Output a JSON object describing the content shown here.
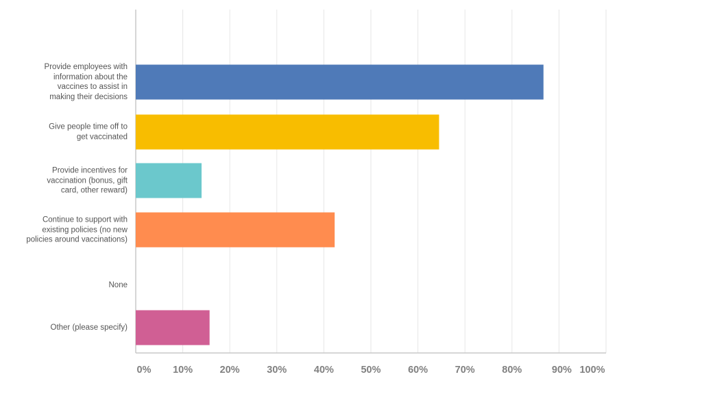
{
  "chart_data": {
    "type": "bar",
    "orientation": "horizontal",
    "categories": [
      "Provide employees with information about the vaccines to assist in making their decisions",
      "Give people time off to get vaccinated",
      "Provide incentives for vaccination (bonus, gift card, other reward)",
      "Continue to support with existing policies (no new policies around vaccinations)",
      "None",
      "Other (please specify)"
    ],
    "category_lines": [
      [
        "Provide employees with",
        "information about the",
        "vaccines to assist in",
        "making their decisions"
      ],
      [
        "Give people time off to",
        "get vaccinated"
      ],
      [
        "Provide incentives for",
        "vaccination (bonus, gift",
        "card, other reward)"
      ],
      [
        "Continue to support with",
        "existing policies (no new",
        "policies around vaccinations)"
      ],
      [
        "None"
      ],
      [
        "Other (please specify)"
      ]
    ],
    "values": [
      86.7,
      64.5,
      14.0,
      42.3,
      0,
      15.7
    ],
    "colors": [
      "#4f7ab8",
      "#f8bd00",
      "#6bc8cc",
      "#ff8c4f",
      "#8a8a8a",
      "#d05f94"
    ],
    "xlim": [
      0,
      100
    ],
    "x_ticks": [
      "0%",
      "10%",
      "20%",
      "30%",
      "40%",
      "50%",
      "60%",
      "70%",
      "80%",
      "90%",
      "100%"
    ],
    "grid": true,
    "title": "",
    "xlabel": "",
    "ylabel": ""
  }
}
